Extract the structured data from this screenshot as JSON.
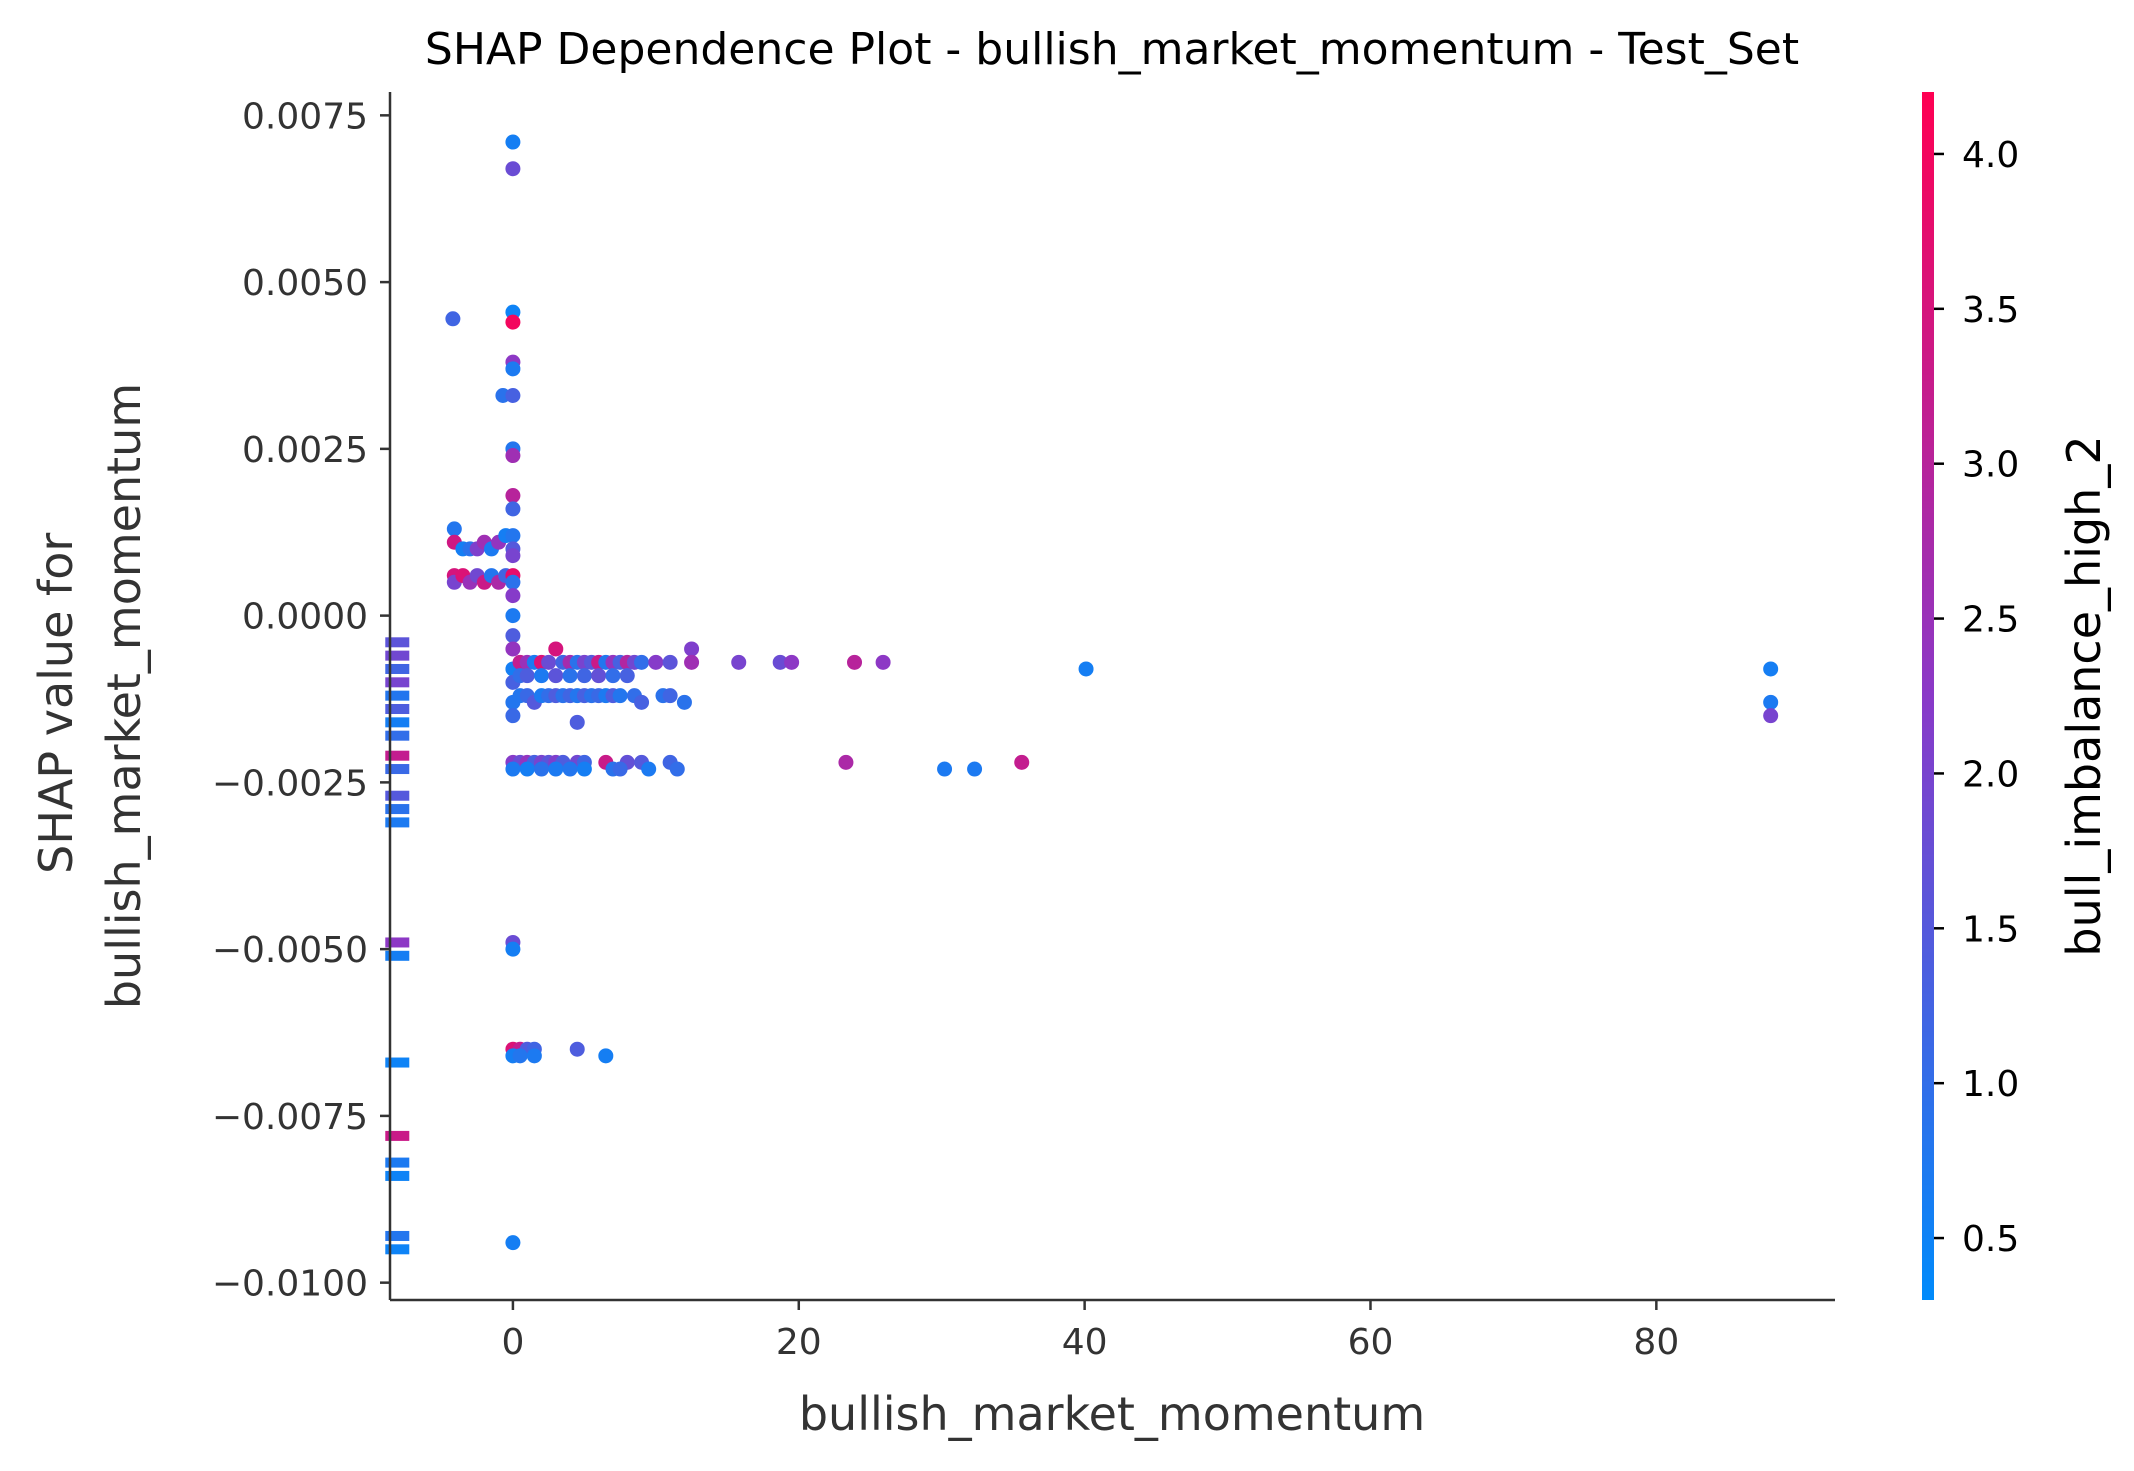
{
  "chart_data": {
    "type": "scatter",
    "title": "SHAP Dependence Plot - bullish_market_momentum - Test_Set",
    "xlabel": "bullish_market_momentum",
    "ylabel": [
      "SHAP value for",
      "bullish_market_momentum"
    ],
    "colorbar_label": "bull_imbalance_high_2",
    "xlim": [
      -8.6,
      92.5
    ],
    "ylim": [
      -0.01026,
      0.00785
    ],
    "x_ticks": [
      0,
      20,
      40,
      60,
      80
    ],
    "x_tick_labels": [
      "0",
      "20",
      "40",
      "60",
      "80"
    ],
    "y_ticks": [
      0.0075,
      0.005,
      0.0025,
      0.0,
      -0.0025,
      -0.005,
      -0.0075,
      -0.01
    ],
    "y_tick_labels": [
      "0.0075",
      "0.0050",
      "0.0025",
      "0.0000",
      "−0.0025",
      "−0.0050",
      "−0.0075",
      "−0.0100"
    ],
    "colorbar_range": [
      0.3,
      4.2
    ],
    "colorbar_ticks": [
      4.0,
      3.5,
      3.0,
      2.5,
      2.0,
      1.5,
      1.0,
      0.5
    ],
    "colorbar_tick_labels": [
      "4.0",
      "3.5",
      "3.0",
      "2.5",
      "2.0",
      "1.5",
      "1.0",
      "0.5"
    ],
    "colors": {
      "low": "#008bfb",
      "mid": "#8a39c8",
      "high": "#ff0052"
    },
    "grid": false,
    "legend": "colorbar right",
    "nan_strip_x": -8.3,
    "nan_strip": [
      {
        "y": -0.0004,
        "c": 1.6
      },
      {
        "y": -0.0006,
        "c": 1.9
      },
      {
        "y": -0.0008,
        "c": 1.2
      },
      {
        "y": -0.001,
        "c": 2.0
      },
      {
        "y": -0.0012,
        "c": 0.8
      },
      {
        "y": -0.0014,
        "c": 1.4
      },
      {
        "y": -0.0016,
        "c": 0.6
      },
      {
        "y": -0.0018,
        "c": 1.0
      },
      {
        "y": -0.0021,
        "c": 3.2
      },
      {
        "y": -0.0023,
        "c": 1.1
      },
      {
        "y": -0.0027,
        "c": 1.5
      },
      {
        "y": -0.0029,
        "c": 0.9
      },
      {
        "y": -0.0031,
        "c": 0.7
      },
      {
        "y": -0.0049,
        "c": 2.3
      },
      {
        "y": -0.0051,
        "c": 0.6
      },
      {
        "y": -0.0067,
        "c": 0.5
      },
      {
        "y": -0.0078,
        "c": 3.3
      },
      {
        "y": -0.0082,
        "c": 0.7
      },
      {
        "y": -0.0084,
        "c": 0.5
      },
      {
        "y": -0.0093,
        "c": 0.8
      },
      {
        "y": -0.0095,
        "c": 0.5
      }
    ],
    "points": [
      {
        "x": 0.0,
        "y": 0.0071,
        "c": 0.6
      },
      {
        "x": 0.0,
        "y": 0.0067,
        "c": 1.8
      },
      {
        "x": -4.2,
        "y": 0.00445,
        "c": 1.2
      },
      {
        "x": 0.0,
        "y": 0.00455,
        "c": 0.5
      },
      {
        "x": 0.0,
        "y": 0.0044,
        "c": 4.0
      },
      {
        "x": 0.0,
        "y": 0.0038,
        "c": 2.3
      },
      {
        "x": 0.0,
        "y": 0.0037,
        "c": 0.7
      },
      {
        "x": -0.7,
        "y": 0.0033,
        "c": 0.9
      },
      {
        "x": 0.0,
        "y": 0.0033,
        "c": 1.3
      },
      {
        "x": 0.0,
        "y": 0.0025,
        "c": 0.8
      },
      {
        "x": 0.0,
        "y": 0.0024,
        "c": 2.6
      },
      {
        "x": 0.0,
        "y": 0.0018,
        "c": 3.0
      },
      {
        "x": 0.0,
        "y": 0.0016,
        "c": 1.2
      },
      {
        "x": -4.1,
        "y": 0.0013,
        "c": 0.8
      },
      {
        "x": -4.1,
        "y": 0.0011,
        "c": 3.4
      },
      {
        "x": -3.5,
        "y": 0.001,
        "c": 0.6
      },
      {
        "x": -3.0,
        "y": 0.001,
        "c": 0.9
      },
      {
        "x": -2.5,
        "y": 0.001,
        "c": 2.1
      },
      {
        "x": -2.0,
        "y": 0.0011,
        "c": 2.6
      },
      {
        "x": -1.5,
        "y": 0.001,
        "c": 0.7
      },
      {
        "x": -1.0,
        "y": 0.0011,
        "c": 2.4
      },
      {
        "x": -0.5,
        "y": 0.0012,
        "c": 0.6
      },
      {
        "x": 0.0,
        "y": 0.0012,
        "c": 0.8
      },
      {
        "x": 0.0,
        "y": 0.001,
        "c": 1.5
      },
      {
        "x": 0.0,
        "y": 0.0009,
        "c": 2.0
      },
      {
        "x": -4.1,
        "y": 0.0006,
        "c": 3.5
      },
      {
        "x": -4.1,
        "y": 0.0005,
        "c": 2.0
      },
      {
        "x": -3.5,
        "y": 0.0006,
        "c": 3.6
      },
      {
        "x": -3.0,
        "y": 0.0005,
        "c": 2.5
      },
      {
        "x": -2.5,
        "y": 0.0006,
        "c": 1.9
      },
      {
        "x": -2.0,
        "y": 0.0005,
        "c": 3.3
      },
      {
        "x": -1.5,
        "y": 0.0006,
        "c": 0.8
      },
      {
        "x": -1.0,
        "y": 0.0005,
        "c": 2.8
      },
      {
        "x": -0.5,
        "y": 0.0006,
        "c": 1.2
      },
      {
        "x": 0.0,
        "y": 0.0006,
        "c": 3.8
      },
      {
        "x": 0.0,
        "y": 0.0005,
        "c": 0.9
      },
      {
        "x": 0.0,
        "y": 0.0003,
        "c": 2.2
      },
      {
        "x": 0.0,
        "y": 0.0,
        "c": 0.7
      },
      {
        "x": 0.0,
        "y": -0.0003,
        "c": 1.4
      },
      {
        "x": 0.0,
        "y": -0.0005,
        "c": 2.4
      },
      {
        "x": 0.0,
        "y": -0.0008,
        "c": 0.6
      },
      {
        "x": 0.0,
        "y": -0.001,
        "c": 1.3
      },
      {
        "x": 0.0,
        "y": -0.0013,
        "c": 0.8
      },
      {
        "x": 0.0,
        "y": -0.0015,
        "c": 1.1
      },
      {
        "x": 0.5,
        "y": -0.0007,
        "c": 3.2
      },
      {
        "x": 1.0,
        "y": -0.0007,
        "c": 2.5
      },
      {
        "x": 1.5,
        "y": -0.0007,
        "c": 0.7
      },
      {
        "x": 2.0,
        "y": -0.0007,
        "c": 3.6
      },
      {
        "x": 2.5,
        "y": -0.0007,
        "c": 1.8
      },
      {
        "x": 3.0,
        "y": -0.0005,
        "c": 3.5
      },
      {
        "x": 3.5,
        "y": -0.0007,
        "c": 1.2
      },
      {
        "x": 4.0,
        "y": -0.0007,
        "c": 2.7
      },
      {
        "x": 4.5,
        "y": -0.0007,
        "c": 0.9
      },
      {
        "x": 5.0,
        "y": -0.0007,
        "c": 2.0
      },
      {
        "x": 5.5,
        "y": -0.0007,
        "c": 1.5
      },
      {
        "x": 6.0,
        "y": -0.0007,
        "c": 3.3
      },
      {
        "x": 6.5,
        "y": -0.0007,
        "c": 0.8
      },
      {
        "x": 7.0,
        "y": -0.0007,
        "c": 2.4
      },
      {
        "x": 7.5,
        "y": -0.0007,
        "c": 1.3
      },
      {
        "x": 8.0,
        "y": -0.0007,
        "c": 2.9
      },
      {
        "x": 8.5,
        "y": -0.0007,
        "c": 1.9
      },
      {
        "x": 9.0,
        "y": -0.0007,
        "c": 1.0
      },
      {
        "x": 10.0,
        "y": -0.0007,
        "c": 2.2
      },
      {
        "x": 11.0,
        "y": -0.0007,
        "c": 1.6
      },
      {
        "x": 12.5,
        "y": -0.0005,
        "c": 2.1
      },
      {
        "x": 12.5,
        "y": -0.0007,
        "c": 2.6
      },
      {
        "x": 15.8,
        "y": -0.0007,
        "c": 2.0
      },
      {
        "x": 18.7,
        "y": -0.0007,
        "c": 1.8
      },
      {
        "x": 19.5,
        "y": -0.0007,
        "c": 2.3
      },
      {
        "x": 23.9,
        "y": -0.0007,
        "c": 3.0
      },
      {
        "x": 25.9,
        "y": -0.0007,
        "c": 2.3
      },
      {
        "x": 40.1,
        "y": -0.0008,
        "c": 0.6
      },
      {
        "x": 0.5,
        "y": -0.0009,
        "c": 1.0
      },
      {
        "x": 1.0,
        "y": -0.0009,
        "c": 1.4
      },
      {
        "x": 2.0,
        "y": -0.0009,
        "c": 0.7
      },
      {
        "x": 3.0,
        "y": -0.0009,
        "c": 1.6
      },
      {
        "x": 4.0,
        "y": -0.0009,
        "c": 0.9
      },
      {
        "x": 5.0,
        "y": -0.0009,
        "c": 1.2
      },
      {
        "x": 6.0,
        "y": -0.0009,
        "c": 1.7
      },
      {
        "x": 7.0,
        "y": -0.0009,
        "c": 1.0
      },
      {
        "x": 8.0,
        "y": -0.0009,
        "c": 1.3
      },
      {
        "x": 0.5,
        "y": -0.0012,
        "c": 0.8
      },
      {
        "x": 1.0,
        "y": -0.0012,
        "c": 1.1
      },
      {
        "x": 1.5,
        "y": -0.0013,
        "c": 1.5
      },
      {
        "x": 2.0,
        "y": -0.0012,
        "c": 0.7
      },
      {
        "x": 2.5,
        "y": -0.0012,
        "c": 1.0
      },
      {
        "x": 3.0,
        "y": -0.0012,
        "c": 1.4
      },
      {
        "x": 3.5,
        "y": -0.0012,
        "c": 0.9
      },
      {
        "x": 4.0,
        "y": -0.0012,
        "c": 1.2
      },
      {
        "x": 4.5,
        "y": -0.0012,
        "c": 0.8
      },
      {
        "x": 5.0,
        "y": -0.0012,
        "c": 1.3
      },
      {
        "x": 5.5,
        "y": -0.0012,
        "c": 0.9
      },
      {
        "x": 6.0,
        "y": -0.0012,
        "c": 1.1
      },
      {
        "x": 6.5,
        "y": -0.0012,
        "c": 0.7
      },
      {
        "x": 7.0,
        "y": -0.0012,
        "c": 1.4
      },
      {
        "x": 7.5,
        "y": -0.0012,
        "c": 0.8
      },
      {
        "x": 8.5,
        "y": -0.0012,
        "c": 1.0
      },
      {
        "x": 9.0,
        "y": -0.0013,
        "c": 1.3
      },
      {
        "x": 10.5,
        "y": -0.0012,
        "c": 0.9
      },
      {
        "x": 11.0,
        "y": -0.0012,
        "c": 1.2
      },
      {
        "x": 12.0,
        "y": -0.0013,
        "c": 0.9
      },
      {
        "x": 4.5,
        "y": -0.0016,
        "c": 1.4
      },
      {
        "x": 0.0,
        "y": -0.0022,
        "c": 2.2
      },
      {
        "x": 0.5,
        "y": -0.0022,
        "c": 1.8
      },
      {
        "x": 1.0,
        "y": -0.0022,
        "c": 2.4
      },
      {
        "x": 1.5,
        "y": -0.0022,
        "c": 1.3
      },
      {
        "x": 2.0,
        "y": -0.0022,
        "c": 2.0
      },
      {
        "x": 2.5,
        "y": -0.0022,
        "c": 1.6
      },
      {
        "x": 3.0,
        "y": -0.0022,
        "c": 2.1
      },
      {
        "x": 3.5,
        "y": -0.0022,
        "c": 1.4
      },
      {
        "x": 4.5,
        "y": -0.0022,
        "c": 1.9
      },
      {
        "x": 5.0,
        "y": -0.0022,
        "c": 1.2
      },
      {
        "x": 6.5,
        "y": -0.0022,
        "c": 3.3
      },
      {
        "x": 8.0,
        "y": -0.0022,
        "c": 1.7
      },
      {
        "x": 9.0,
        "y": -0.0022,
        "c": 1.5
      },
      {
        "x": 11.0,
        "y": -0.0022,
        "c": 1.2
      },
      {
        "x": 23.3,
        "y": -0.0022,
        "c": 2.8
      },
      {
        "x": 35.6,
        "y": -0.0022,
        "c": 3.2
      },
      {
        "x": 0.0,
        "y": -0.0023,
        "c": 0.7
      },
      {
        "x": 1.0,
        "y": -0.0023,
        "c": 0.6
      },
      {
        "x": 2.0,
        "y": -0.0023,
        "c": 0.9
      },
      {
        "x": 3.0,
        "y": -0.0023,
        "c": 0.7
      },
      {
        "x": 4.0,
        "y": -0.0023,
        "c": 0.8
      },
      {
        "x": 5.0,
        "y": -0.0023,
        "c": 0.6
      },
      {
        "x": 7.0,
        "y": -0.0023,
        "c": 0.9
      },
      {
        "x": 7.5,
        "y": -0.0023,
        "c": 1.1
      },
      {
        "x": 9.5,
        "y": -0.0023,
        "c": 0.7
      },
      {
        "x": 11.5,
        "y": -0.0023,
        "c": 1.0
      },
      {
        "x": 30.2,
        "y": -0.0023,
        "c": 0.7
      },
      {
        "x": 32.3,
        "y": -0.0023,
        "c": 0.7
      },
      {
        "x": 88.0,
        "y": -0.0008,
        "c": 0.6
      },
      {
        "x": 88.0,
        "y": -0.0013,
        "c": 0.7
      },
      {
        "x": 88.0,
        "y": -0.0015,
        "c": 2.0
      },
      {
        "x": 0.0,
        "y": -0.0049,
        "c": 1.8
      },
      {
        "x": 0.0,
        "y": -0.005,
        "c": 0.6
      },
      {
        "x": 0.0,
        "y": -0.0065,
        "c": 3.6
      },
      {
        "x": 0.5,
        "y": -0.0065,
        "c": 3.2
      },
      {
        "x": 1.0,
        "y": -0.0065,
        "c": 1.4
      },
      {
        "x": 1.5,
        "y": -0.0065,
        "c": 1.2
      },
      {
        "x": 0.0,
        "y": -0.0066,
        "c": 0.6
      },
      {
        "x": 0.5,
        "y": -0.0066,
        "c": 0.8
      },
      {
        "x": 1.5,
        "y": -0.0066,
        "c": 0.7
      },
      {
        "x": 4.5,
        "y": -0.0065,
        "c": 1.4
      },
      {
        "x": 6.5,
        "y": -0.0066,
        "c": 0.6
      },
      {
        "x": 0.0,
        "y": -0.0094,
        "c": 0.6
      }
    ]
  }
}
